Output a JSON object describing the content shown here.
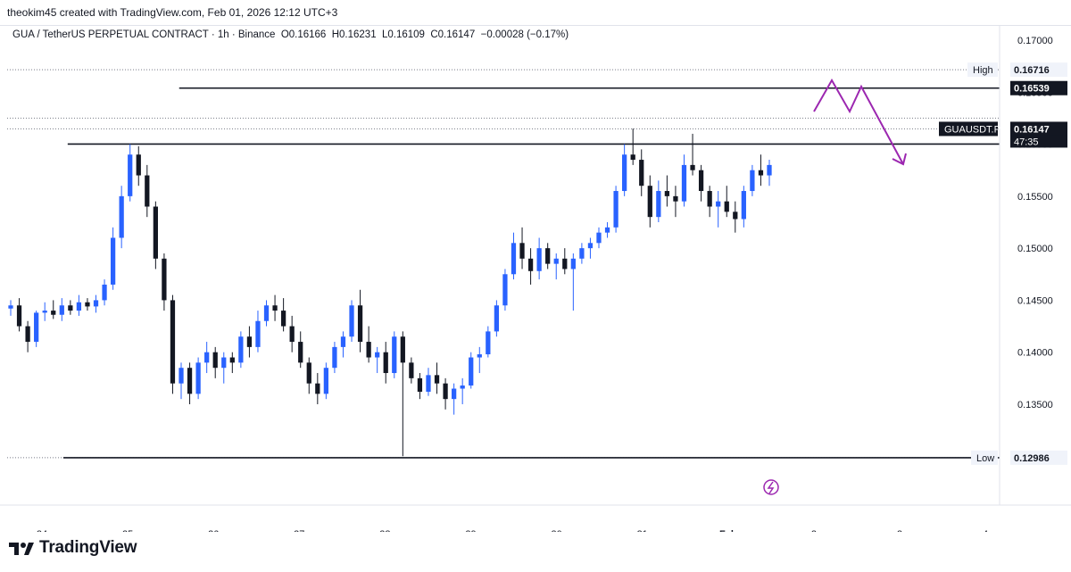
{
  "header": {
    "attribution": "theokim45 created with TradingView.com, Feb 01, 2026 12:12 UTC+3"
  },
  "legend": {
    "symbol": "GUA / TetherUS PERPETUAL CONTRACT · 1h · Binance",
    "open": "O0.16166",
    "high": "H0.16231",
    "low": "L0.16109",
    "close": "C0.16147",
    "change": "−0.00028 (−0.17%)"
  },
  "footer": {
    "brand": "TradingView",
    "brand_icon": "tradingview-logo-icon"
  },
  "chart_data": {
    "type": "candlestick",
    "title": "GUA / TetherUS PERPETUAL CONTRACT · 1h · Binance",
    "x_ticks": [
      "24",
      "25",
      "26",
      "27",
      "28",
      "29",
      "30",
      "31",
      "Feb",
      "2",
      "3",
      "4"
    ],
    "y_ticks": [
      "0.17000",
      "0.16500",
      "0.16000",
      "0.15500",
      "0.15000",
      "0.14500",
      "0.14000",
      "0.13500"
    ],
    "y_tick_values": [
      0.17,
      0.165,
      0.16,
      0.155,
      0.15,
      0.145,
      0.14,
      0.135
    ],
    "ylim": [
      0.1266,
      0.1718
    ],
    "xlim_days": [
      23.6,
      27.15
    ],
    "colors": {
      "up": "#2962ff",
      "down": "#131722",
      "annotation": "#9c27b0",
      "level_line": "#131722"
    },
    "price_labels": {
      "high": {
        "name": "High",
        "value": "0.16716"
      },
      "low": {
        "name": "Low",
        "value": "0.12986"
      },
      "resistance": {
        "value": "0.16539"
      },
      "current": {
        "symbol": "GUAUSDT.P",
        "value": "0.16147",
        "countdown": "47:35"
      }
    },
    "levels": [
      {
        "name": "resistance",
        "price": 0.16539
      },
      {
        "name": "support",
        "price": 0.16001
      },
      {
        "name": "low",
        "price": 0.12986
      }
    ],
    "projection_path": [
      [
        26.1,
        0.1619
      ],
      [
        26.3,
        0.1676
      ],
      [
        26.48,
        0.162
      ],
      [
        26.62,
        0.1665
      ],
      [
        27.05,
        0.159
      ]
    ],
    "candles": [
      [
        23.6,
        0.1442,
        0.145,
        0.1435,
        0.1445
      ],
      [
        23.64,
        0.1445,
        0.1452,
        0.142,
        0.1425
      ],
      [
        23.68,
        0.1425,
        0.143,
        0.14,
        0.141
      ],
      [
        23.72,
        0.141,
        0.144,
        0.1405,
        0.1438
      ],
      [
        23.76,
        0.1438,
        0.1448,
        0.143,
        0.144
      ],
      [
        23.8,
        0.144,
        0.145,
        0.1432,
        0.1436
      ],
      [
        23.84,
        0.1436,
        0.1452,
        0.143,
        0.1445
      ],
      [
        23.88,
        0.1445,
        0.145,
        0.1436,
        0.144
      ],
      [
        23.92,
        0.144,
        0.1455,
        0.1435,
        0.1448
      ],
      [
        23.96,
        0.1448,
        0.1452,
        0.144,
        0.1444
      ],
      [
        24.0,
        0.1444,
        0.1455,
        0.1438,
        0.145
      ],
      [
        24.04,
        0.145,
        0.147,
        0.1445,
        0.1465
      ],
      [
        24.08,
        0.1465,
        0.152,
        0.146,
        0.151
      ],
      [
        24.12,
        0.151,
        0.156,
        0.15,
        0.155
      ],
      [
        24.16,
        0.155,
        0.16,
        0.1545,
        0.159
      ],
      [
        24.2,
        0.159,
        0.1598,
        0.156,
        0.157
      ],
      [
        24.24,
        0.157,
        0.158,
        0.153,
        0.154
      ],
      [
        24.28,
        0.154,
        0.1545,
        0.148,
        0.149
      ],
      [
        24.32,
        0.149,
        0.1495,
        0.144,
        0.145
      ],
      [
        24.36,
        0.145,
        0.1455,
        0.136,
        0.137
      ],
      [
        24.4,
        0.137,
        0.139,
        0.1355,
        0.1385
      ],
      [
        24.44,
        0.1385,
        0.139,
        0.135,
        0.136
      ],
      [
        24.48,
        0.136,
        0.1395,
        0.1355,
        0.139
      ],
      [
        24.52,
        0.139,
        0.141,
        0.138,
        0.14
      ],
      [
        24.56,
        0.14,
        0.1405,
        0.1375,
        0.1385
      ],
      [
        24.6,
        0.1385,
        0.14,
        0.137,
        0.1395
      ],
      [
        24.64,
        0.1395,
        0.14,
        0.138,
        0.139
      ],
      [
        24.68,
        0.139,
        0.142,
        0.1385,
        0.1415
      ],
      [
        24.72,
        0.1415,
        0.1425,
        0.1395,
        0.1405
      ],
      [
        24.76,
        0.1405,
        0.144,
        0.14,
        0.143
      ],
      [
        24.8,
        0.143,
        0.145,
        0.1425,
        0.1445
      ],
      [
        24.84,
        0.1445,
        0.1455,
        0.143,
        0.144
      ],
      [
        24.88,
        0.144,
        0.1452,
        0.142,
        0.1425
      ],
      [
        24.92,
        0.1425,
        0.1435,
        0.14,
        0.141
      ],
      [
        24.96,
        0.141,
        0.142,
        0.1385,
        0.139
      ],
      [
        25.0,
        0.139,
        0.1395,
        0.136,
        0.137
      ],
      [
        25.04,
        0.137,
        0.138,
        0.135,
        0.136
      ],
      [
        25.08,
        0.136,
        0.139,
        0.1355,
        0.1385
      ],
      [
        25.12,
        0.1385,
        0.141,
        0.138,
        0.1405
      ],
      [
        25.16,
        0.1405,
        0.142,
        0.1395,
        0.1415
      ],
      [
        25.2,
        0.1415,
        0.145,
        0.141,
        0.1445
      ],
      [
        25.24,
        0.1445,
        0.146,
        0.14,
        0.141
      ],
      [
        25.28,
        0.141,
        0.1425,
        0.139,
        0.1395
      ],
      [
        25.32,
        0.1395,
        0.1405,
        0.138,
        0.14
      ],
      [
        25.36,
        0.14,
        0.141,
        0.137,
        0.138
      ],
      [
        25.4,
        0.138,
        0.142,
        0.1375,
        0.1415
      ],
      [
        25.44,
        0.1415,
        0.142,
        0.13,
        0.139
      ],
      [
        25.48,
        0.139,
        0.1395,
        0.137,
        0.1375
      ],
      [
        25.52,
        0.1375,
        0.138,
        0.1355,
        0.1362
      ],
      [
        25.56,
        0.1362,
        0.1385,
        0.1358,
        0.1378
      ],
      [
        25.6,
        0.1378,
        0.139,
        0.136,
        0.137
      ],
      [
        25.64,
        0.137,
        0.1375,
        0.1345,
        0.1355
      ],
      [
        25.68,
        0.1355,
        0.137,
        0.134,
        0.1365
      ],
      [
        25.72,
        0.1365,
        0.1375,
        0.135,
        0.1368
      ],
      [
        25.76,
        0.1368,
        0.14,
        0.1365,
        0.1395
      ],
      [
        25.8,
        0.1395,
        0.1405,
        0.138,
        0.1398
      ],
      [
        25.84,
        0.1398,
        0.1425,
        0.1395,
        0.142
      ],
      [
        25.88,
        0.142,
        0.145,
        0.1415,
        0.1445
      ],
      [
        25.92,
        0.1445,
        0.148,
        0.144,
        0.1475
      ],
      [
        25.96,
        0.1475,
        0.1515,
        0.147,
        0.1505
      ],
      [
        26.0,
        0.1505,
        0.152,
        0.148,
        0.149
      ],
      [
        26.04,
        0.149,
        0.15,
        0.1465,
        0.1478
      ],
      [
        26.08,
        0.1478,
        0.151,
        0.147,
        0.15
      ],
      [
        26.12,
        0.15,
        0.1505,
        0.148,
        0.1485
      ],
      [
        26.16,
        0.1485,
        0.1495,
        0.147,
        0.149
      ],
      [
        26.2,
        0.149,
        0.15,
        0.1475,
        0.148
      ],
      [
        26.24,
        0.148,
        0.1495,
        0.144,
        0.149
      ],
      [
        26.28,
        0.149,
        0.1505,
        0.1485,
        0.15
      ],
      [
        26.32,
        0.15,
        0.151,
        0.149,
        0.1505
      ],
      [
        26.36,
        0.1505,
        0.152,
        0.15,
        0.1515
      ],
      [
        26.4,
        0.1515,
        0.1525,
        0.151,
        0.152
      ],
      [
        26.44,
        0.152,
        0.156,
        0.1515,
        0.1555
      ],
      [
        26.48,
        0.1555,
        0.16,
        0.155,
        0.159
      ],
      [
        26.52,
        0.159,
        0.1615,
        0.158,
        0.1585
      ],
      [
        26.56,
        0.1585,
        0.1595,
        0.155,
        0.156
      ],
      [
        26.6,
        0.156,
        0.157,
        0.152,
        0.153
      ],
      [
        26.64,
        0.153,
        0.1565,
        0.1525,
        0.1555
      ],
      [
        26.68,
        0.1555,
        0.157,
        0.154,
        0.155
      ],
      [
        26.72,
        0.155,
        0.156,
        0.153,
        0.1545
      ],
      [
        26.76,
        0.1545,
        0.159,
        0.154,
        0.158
      ],
      [
        26.8,
        0.158,
        0.161,
        0.157,
        0.1575
      ],
      [
        26.84,
        0.1575,
        0.158,
        0.1545,
        0.1555
      ],
      [
        26.88,
        0.1555,
        0.156,
        0.153,
        0.154
      ],
      [
        26.92,
        0.154,
        0.1555,
        0.152,
        0.1545
      ],
      [
        26.96,
        0.1545,
        0.156,
        0.153,
        0.1535
      ],
      [
        27.0,
        0.1535,
        0.1545,
        0.1515,
        0.1528
      ],
      [
        27.04,
        0.1528,
        0.156,
        0.152,
        0.1555
      ],
      [
        27.08,
        0.1555,
        0.158,
        0.155,
        0.1575
      ],
      [
        27.12,
        0.1575,
        0.159,
        0.156,
        0.157
      ],
      [
        27.15,
        0.157,
        0.1585,
        0.156,
        0.158
      ]
    ]
  }
}
